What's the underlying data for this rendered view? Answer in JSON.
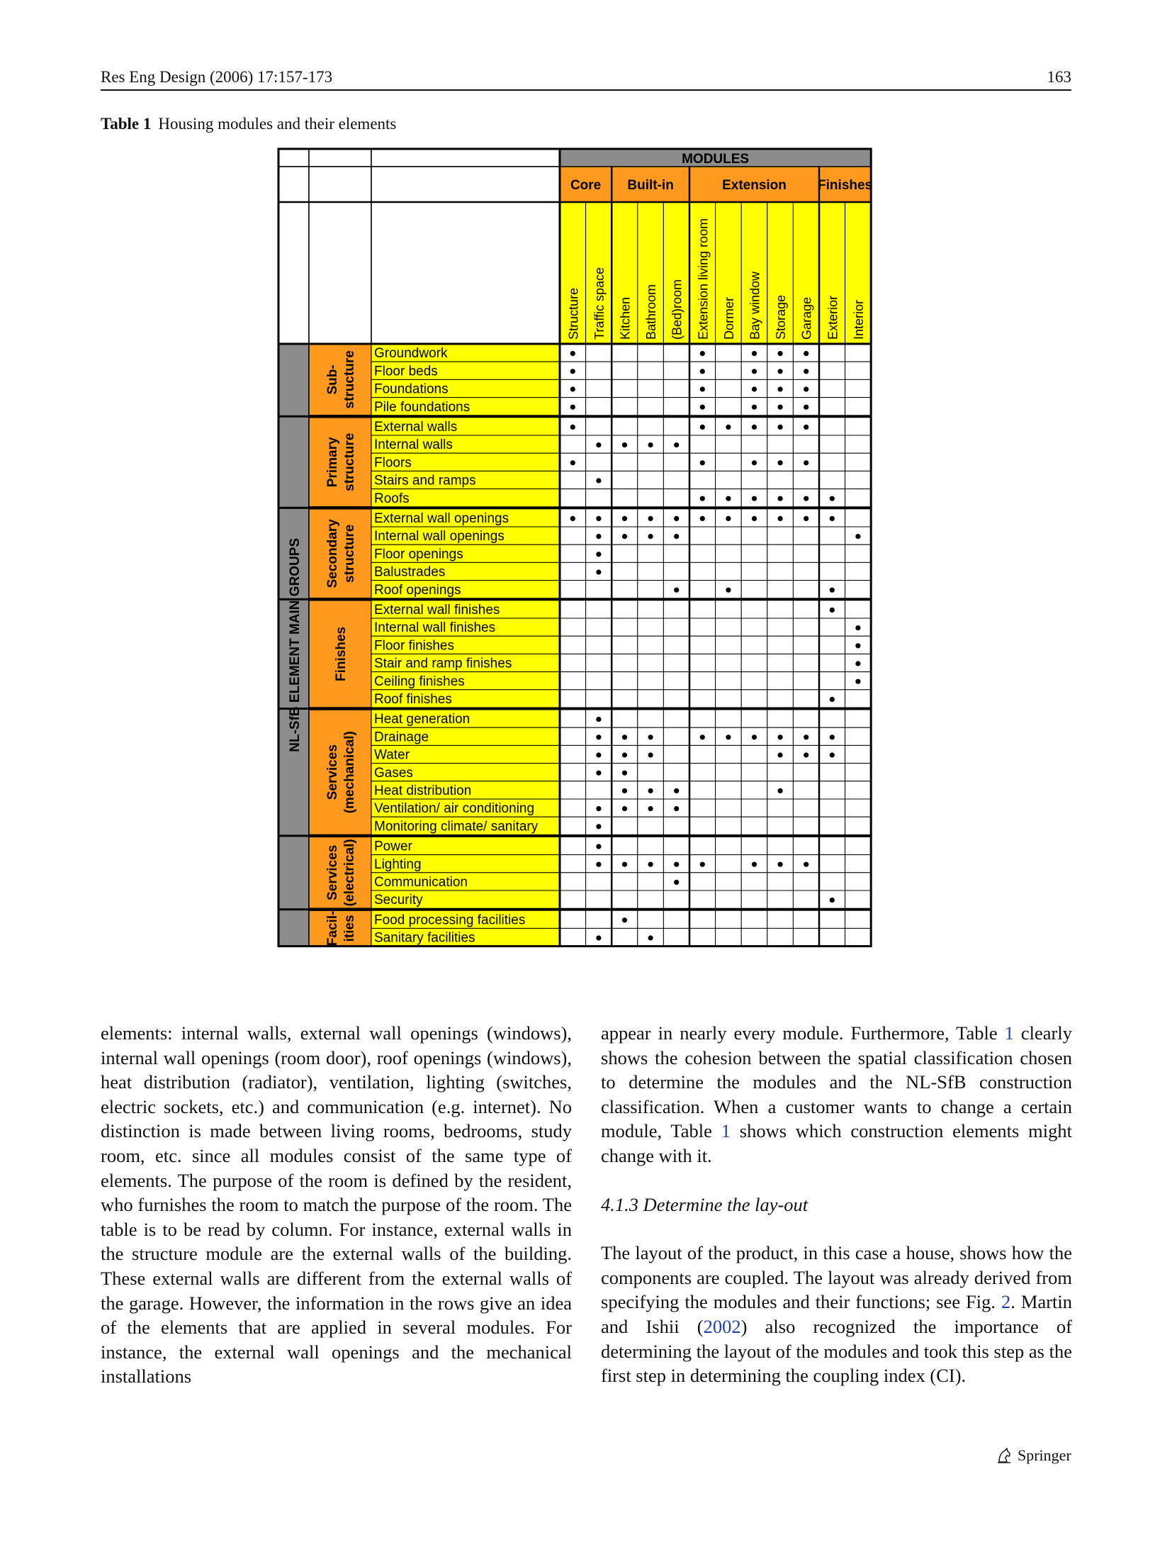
{
  "header": {
    "journal": "Res Eng Design (2006) 17:157-173",
    "page": "163"
  },
  "caption": {
    "label": "Table 1",
    "text": "Housing modules and their elements"
  },
  "table": {
    "modules_title": "MODULES",
    "side_title": "NL-SfB ELEMENT MAIN GROUPS",
    "module_groups": [
      {
        "name": "Core",
        "span": 2
      },
      {
        "name": "Built-in",
        "span": 3
      },
      {
        "name": "Extension",
        "span": 5
      },
      {
        "name": "Finishes",
        "span": 2
      }
    ],
    "columns": [
      "Structure",
      "Traffic space",
      "Kitchen",
      "Bathroom",
      "(Bed)room",
      "Extension living room",
      "Dormer",
      "Bay window",
      "Storage",
      "Garage",
      "Exterior",
      "Interior"
    ],
    "element_groups": [
      {
        "name": [
          "Sub-",
          "structure"
        ],
        "rows": [
          {
            "label": "Groundwork",
            "marks": [
              1,
              0,
              0,
              0,
              0,
              1,
              0,
              1,
              1,
              1,
              0,
              0
            ]
          },
          {
            "label": "Floor beds",
            "marks": [
              1,
              0,
              0,
              0,
              0,
              1,
              0,
              1,
              1,
              1,
              0,
              0
            ]
          },
          {
            "label": "Foundations",
            "marks": [
              1,
              0,
              0,
              0,
              0,
              1,
              0,
              1,
              1,
              1,
              0,
              0
            ]
          },
          {
            "label": "Pile foundations",
            "marks": [
              1,
              0,
              0,
              0,
              0,
              1,
              0,
              1,
              1,
              1,
              0,
              0
            ]
          }
        ]
      },
      {
        "name": [
          "Primary",
          "structure"
        ],
        "rows": [
          {
            "label": "External walls",
            "marks": [
              1,
              0,
              0,
              0,
              0,
              1,
              1,
              1,
              1,
              1,
              0,
              0
            ]
          },
          {
            "label": "Internal walls",
            "marks": [
              0,
              1,
              1,
              1,
              1,
              0,
              0,
              0,
              0,
              0,
              0,
              0
            ]
          },
          {
            "label": "Floors",
            "marks": [
              1,
              0,
              0,
              0,
              0,
              1,
              0,
              1,
              1,
              1,
              0,
              0
            ]
          },
          {
            "label": "Stairs and ramps",
            "marks": [
              0,
              1,
              0,
              0,
              0,
              0,
              0,
              0,
              0,
              0,
              0,
              0
            ]
          },
          {
            "label": "Roofs",
            "marks": [
              0,
              0,
              0,
              0,
              0,
              1,
              1,
              1,
              1,
              1,
              1,
              0
            ]
          }
        ]
      },
      {
        "name": [
          "Secondary",
          "structure"
        ],
        "rows": [
          {
            "label": "External wall openings",
            "marks": [
              1,
              1,
              1,
              1,
              1,
              1,
              1,
              1,
              1,
              1,
              1,
              0
            ]
          },
          {
            "label": "Internal wall openings",
            "marks": [
              0,
              1,
              1,
              1,
              1,
              0,
              0,
              0,
              0,
              0,
              0,
              1
            ]
          },
          {
            "label": "Floor openings",
            "marks": [
              0,
              1,
              0,
              0,
              0,
              0,
              0,
              0,
              0,
              0,
              0,
              0
            ]
          },
          {
            "label": "Balustrades",
            "marks": [
              0,
              1,
              0,
              0,
              0,
              0,
              0,
              0,
              0,
              0,
              0,
              0
            ]
          },
          {
            "label": "Roof openings",
            "marks": [
              0,
              0,
              0,
              0,
              1,
              0,
              1,
              0,
              0,
              0,
              1,
              0
            ]
          }
        ]
      },
      {
        "name": [
          "Finishes"
        ],
        "rows": [
          {
            "label": "External wall finishes",
            "marks": [
              0,
              0,
              0,
              0,
              0,
              0,
              0,
              0,
              0,
              0,
              1,
              0
            ]
          },
          {
            "label": "Internal wall finishes",
            "marks": [
              0,
              0,
              0,
              0,
              0,
              0,
              0,
              0,
              0,
              0,
              0,
              1
            ]
          },
          {
            "label": "Floor finishes",
            "marks": [
              0,
              0,
              0,
              0,
              0,
              0,
              0,
              0,
              0,
              0,
              0,
              1
            ]
          },
          {
            "label": "Stair and ramp finishes",
            "marks": [
              0,
              0,
              0,
              0,
              0,
              0,
              0,
              0,
              0,
              0,
              0,
              1
            ]
          },
          {
            "label": "Ceiling finishes",
            "marks": [
              0,
              0,
              0,
              0,
              0,
              0,
              0,
              0,
              0,
              0,
              0,
              1
            ]
          },
          {
            "label": "Roof finishes",
            "marks": [
              0,
              0,
              0,
              0,
              0,
              0,
              0,
              0,
              0,
              0,
              1,
              0
            ]
          }
        ]
      },
      {
        "name": [
          "Services",
          "(mechanical)"
        ],
        "rows": [
          {
            "label": "Heat generation",
            "marks": [
              0,
              1,
              0,
              0,
              0,
              0,
              0,
              0,
              0,
              0,
              0,
              0
            ]
          },
          {
            "label": "Drainage",
            "marks": [
              0,
              1,
              1,
              1,
              0,
              1,
              1,
              1,
              1,
              1,
              1,
              0
            ]
          },
          {
            "label": "Water",
            "marks": [
              0,
              1,
              1,
              1,
              0,
              0,
              0,
              0,
              1,
              1,
              1,
              0
            ]
          },
          {
            "label": "Gases",
            "marks": [
              0,
              1,
              1,
              0,
              0,
              0,
              0,
              0,
              0,
              0,
              0,
              0
            ]
          },
          {
            "label": "Heat distribution",
            "marks": [
              0,
              0,
              1,
              1,
              1,
              0,
              0,
              0,
              1,
              0,
              0,
              0
            ]
          },
          {
            "label": "Ventilation/ air conditioning",
            "marks": [
              0,
              1,
              1,
              1,
              1,
              0,
              0,
              0,
              0,
              0,
              0,
              0
            ]
          },
          {
            "label": "Monitoring climate/ sanitary",
            "marks": [
              0,
              1,
              0,
              0,
              0,
              0,
              0,
              0,
              0,
              0,
              0,
              0
            ]
          }
        ]
      },
      {
        "name": [
          "Services",
          "(electrical)"
        ],
        "rows": [
          {
            "label": "Power",
            "marks": [
              0,
              1,
              0,
              0,
              0,
              0,
              0,
              0,
              0,
              0,
              0,
              0
            ]
          },
          {
            "label": "Lighting",
            "marks": [
              0,
              1,
              1,
              1,
              1,
              1,
              0,
              1,
              1,
              1,
              0,
              0
            ]
          },
          {
            "label": "Communication",
            "marks": [
              0,
              0,
              0,
              0,
              1,
              0,
              0,
              0,
              0,
              0,
              0,
              0
            ]
          },
          {
            "label": "Security",
            "marks": [
              0,
              0,
              0,
              0,
              0,
              0,
              0,
              0,
              0,
              0,
              1,
              0
            ]
          }
        ]
      },
      {
        "name": [
          "Facil-",
          "ities"
        ],
        "rows": [
          {
            "label": "Food processing facilities",
            "marks": [
              0,
              0,
              1,
              0,
              0,
              0,
              0,
              0,
              0,
              0,
              0,
              0
            ]
          },
          {
            "label": "Sanitary facilities",
            "marks": [
              0,
              1,
              0,
              1,
              0,
              0,
              0,
              0,
              0,
              0,
              0,
              0
            ]
          }
        ]
      }
    ],
    "colors": {
      "modules_header": "#8c8c8c",
      "group_header": "#ff9a1f",
      "column_header": "#ffff00",
      "row_label": "#ffff00",
      "side_group": "#8c8c8c"
    }
  },
  "body": {
    "left": "elements: internal walls, external wall openings (windows), internal wall openings (room door), roof openings (windows), heat distribution (radiator), ventilation, lighting (switches, electric sockets, etc.) and communication (e.g. internet). No distinction is made between living rooms, bedrooms, study room, etc. since all modules consist of the same type of elements. The purpose of the room is defined by the resident, who furnishes the room to match the purpose of the room. The table is to be read by column. For instance, external walls in the structure module are the external walls of the building. These external walls are different from the external walls of the garage. However, the information in the rows give an idea of the elements that are applied in several modules. For instance, the external wall openings and the mechanical installations",
    "right_p1_a": "appear in nearly every module. Furthermore, Table ",
    "right_p1_link1": "1",
    "right_p1_b": " clearly shows the cohesion between the spatial classification chosen to determine the modules and the NL-SfB construction classification. When a customer wants to change a certain module, Table ",
    "right_p1_link2": "1",
    "right_p1_c": " shows which construction elements might change with it.",
    "section_heading": "4.1.3 Determine the lay-out",
    "right_p2_a": "The layout of the product, in this case a house, shows how the components are coupled. The layout was already derived from specifying the modules and their functions; see Fig. ",
    "right_p2_link_fig": "2",
    "right_p2_b": ". Martin and Ishii (",
    "right_p2_link_year": "2002",
    "right_p2_c": ") also recognized the importance of determining the layout of the modules and took this step as the first step in determining the coupling index (CI)."
  },
  "footer": {
    "publisher": "Springer",
    "logo_icon": "springer-horse-icon"
  }
}
